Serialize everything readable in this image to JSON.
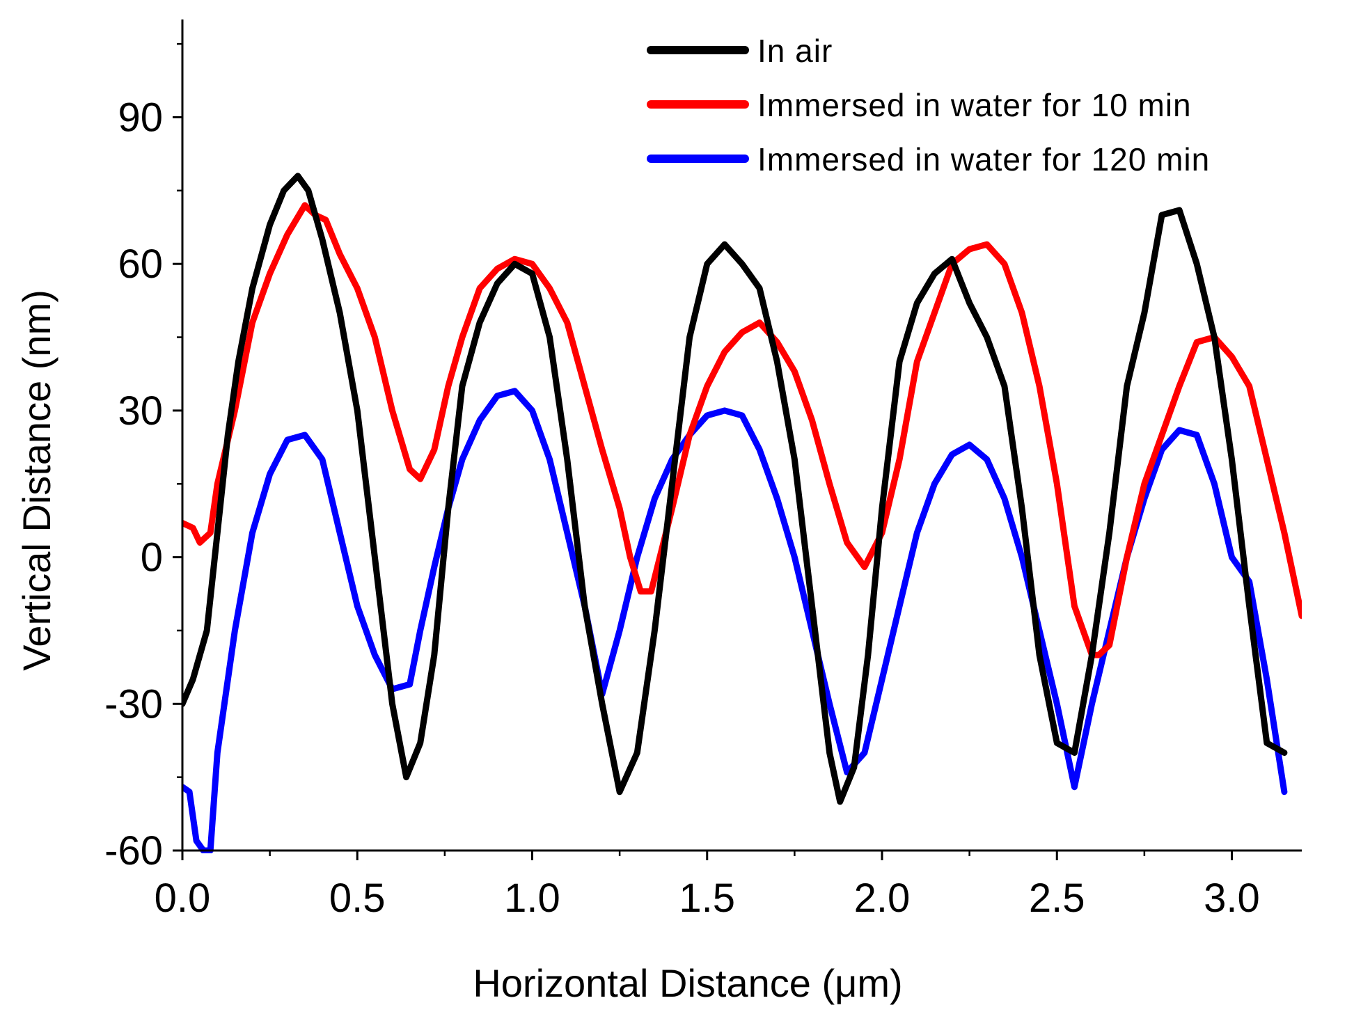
{
  "chart_data": {
    "type": "line",
    "title": "",
    "xlabel": "Horizontal Distance (μm)",
    "ylabel": "Vertical Distance (nm)",
    "xlim": [
      0.0,
      3.2
    ],
    "ylim": [
      -60,
      110
    ],
    "xticks": [
      0.0,
      0.5,
      1.0,
      1.5,
      2.0,
      2.5,
      3.0
    ],
    "xtick_labels": [
      "0.0",
      "0.5",
      "1.0",
      "1.5",
      "2.0",
      "2.5",
      "3.0"
    ],
    "yticks": [
      -60,
      -30,
      0,
      30,
      60,
      90
    ],
    "ytick_labels": [
      "-60",
      "-30",
      "0",
      "30",
      "60",
      "90"
    ],
    "grid": false,
    "legend_position": "top-right",
    "series": [
      {
        "name": "In air",
        "color": "#000000",
        "x": [
          0.0,
          0.03,
          0.07,
          0.1,
          0.13,
          0.16,
          0.2,
          0.25,
          0.29,
          0.33,
          0.36,
          0.4,
          0.45,
          0.5,
          0.55,
          0.6,
          0.64,
          0.68,
          0.72,
          0.76,
          0.8,
          0.85,
          0.9,
          0.95,
          1.0,
          1.05,
          1.1,
          1.15,
          1.2,
          1.25,
          1.3,
          1.35,
          1.4,
          1.45,
          1.5,
          1.55,
          1.6,
          1.65,
          1.7,
          1.75,
          1.8,
          1.85,
          1.88,
          1.92,
          1.96,
          2.0,
          2.05,
          2.1,
          2.15,
          2.2,
          2.25,
          2.3,
          2.35,
          2.4,
          2.45,
          2.5,
          2.55,
          2.6,
          2.65,
          2.7,
          2.75,
          2.8,
          2.85,
          2.9,
          2.95,
          3.0,
          3.05,
          3.1,
          3.15
        ],
        "y": [
          -30,
          -25,
          -15,
          5,
          25,
          40,
          55,
          68,
          75,
          78,
          75,
          65,
          50,
          30,
          0,
          -30,
          -45,
          -38,
          -20,
          10,
          35,
          48,
          56,
          60,
          58,
          45,
          20,
          -10,
          -30,
          -48,
          -40,
          -15,
          15,
          45,
          60,
          64,
          60,
          55,
          40,
          20,
          -10,
          -40,
          -50,
          -43,
          -20,
          10,
          40,
          52,
          58,
          61,
          52,
          45,
          35,
          10,
          -20,
          -38,
          -40,
          -20,
          5,
          35,
          50,
          70,
          71,
          60,
          45,
          20,
          -10,
          -38,
          -40
        ]
      },
      {
        "name": "Immersed in water for 10 min",
        "color": "#ff0000",
        "x": [
          0.0,
          0.03,
          0.05,
          0.08,
          0.1,
          0.15,
          0.2,
          0.25,
          0.3,
          0.35,
          0.38,
          0.41,
          0.45,
          0.5,
          0.55,
          0.6,
          0.65,
          0.68,
          0.72,
          0.76,
          0.8,
          0.85,
          0.9,
          0.95,
          1.0,
          1.05,
          1.1,
          1.15,
          1.2,
          1.25,
          1.28,
          1.31,
          1.34,
          1.4,
          1.45,
          1.5,
          1.55,
          1.6,
          1.65,
          1.7,
          1.75,
          1.8,
          1.85,
          1.9,
          1.95,
          2.0,
          2.05,
          2.1,
          2.15,
          2.2,
          2.25,
          2.3,
          2.35,
          2.4,
          2.45,
          2.5,
          2.55,
          2.6,
          2.62,
          2.65,
          2.7,
          2.75,
          2.8,
          2.85,
          2.9,
          2.95,
          3.0,
          3.05,
          3.1,
          3.15,
          3.2
        ],
        "y": [
          7,
          6,
          3,
          5,
          15,
          30,
          48,
          58,
          66,
          72,
          70,
          69,
          62,
          55,
          45,
          30,
          18,
          16,
          22,
          35,
          45,
          55,
          59,
          61,
          60,
          55,
          48,
          35,
          22,
          10,
          0,
          -7,
          -7,
          10,
          25,
          35,
          42,
          46,
          48,
          44,
          38,
          28,
          15,
          3,
          -2,
          5,
          20,
          40,
          50,
          60,
          63,
          64,
          60,
          50,
          35,
          15,
          -10,
          -20,
          -20,
          -18,
          0,
          15,
          25,
          35,
          44,
          45,
          41,
          35,
          20,
          5,
          -12
        ]
      },
      {
        "name": "Immersed in water for 120 min",
        "color": "#0000ff",
        "x": [
          0.0,
          0.02,
          0.04,
          0.06,
          0.08,
          0.1,
          0.15,
          0.2,
          0.25,
          0.3,
          0.35,
          0.4,
          0.45,
          0.5,
          0.55,
          0.6,
          0.65,
          0.68,
          0.72,
          0.76,
          0.8,
          0.85,
          0.9,
          0.95,
          1.0,
          1.05,
          1.1,
          1.15,
          1.2,
          1.25,
          1.3,
          1.35,
          1.4,
          1.45,
          1.5,
          1.55,
          1.6,
          1.65,
          1.7,
          1.75,
          1.8,
          1.85,
          1.9,
          1.95,
          2.0,
          2.05,
          2.1,
          2.15,
          2.2,
          2.25,
          2.3,
          2.35,
          2.4,
          2.45,
          2.5,
          2.55,
          2.6,
          2.65,
          2.7,
          2.75,
          2.8,
          2.85,
          2.9,
          2.95,
          3.0,
          3.05,
          3.1,
          3.15
        ],
        "y": [
          -47,
          -48,
          -58,
          -60,
          -60,
          -40,
          -15,
          5,
          17,
          24,
          25,
          20,
          5,
          -10,
          -20,
          -27,
          -26,
          -15,
          -2,
          10,
          20,
          28,
          33,
          34,
          30,
          20,
          5,
          -10,
          -28,
          -15,
          0,
          12,
          20,
          25,
          29,
          30,
          29,
          22,
          12,
          0,
          -15,
          -30,
          -44,
          -40,
          -25,
          -10,
          5,
          15,
          21,
          23,
          20,
          12,
          0,
          -15,
          -30,
          -47,
          -30,
          -15,
          0,
          12,
          22,
          26,
          25,
          15,
          0,
          -5,
          -25,
          -48
        ]
      }
    ]
  }
}
